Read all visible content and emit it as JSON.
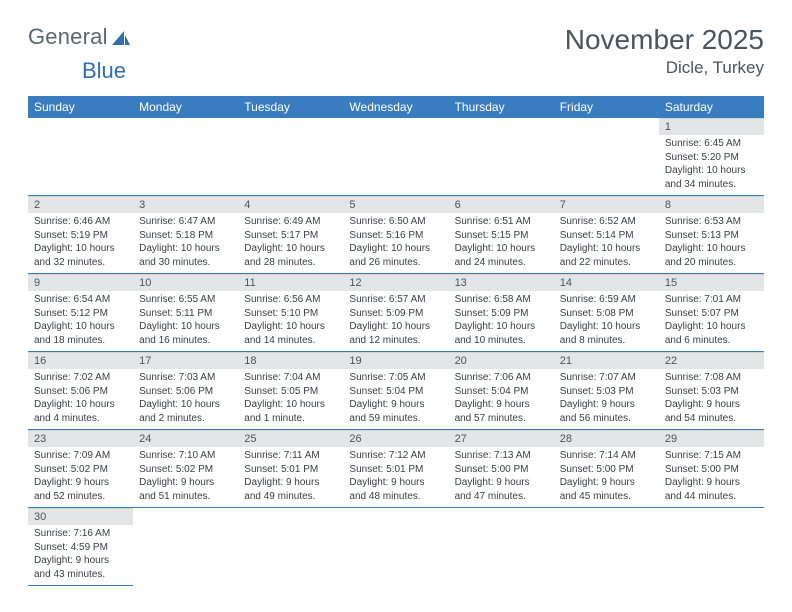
{
  "logo": {
    "text_a": "General",
    "text_b": "Blue"
  },
  "title": "November 2025",
  "location": "Dicle, Turkey",
  "colors": {
    "header_bg": "#3a7cc0",
    "header_fg": "#ffffff",
    "daynum_bg": "#e3e5e7",
    "border": "#3a7cc0",
    "text": "#4a5560"
  },
  "weekdays": [
    "Sunday",
    "Monday",
    "Tuesday",
    "Wednesday",
    "Thursday",
    "Friday",
    "Saturday"
  ],
  "grid": [
    [
      null,
      null,
      null,
      null,
      null,
      null,
      {
        "n": "1",
        "sr": "Sunrise: 6:45 AM",
        "ss": "Sunset: 5:20 PM",
        "dl1": "Daylight: 10 hours",
        "dl2": "and 34 minutes."
      }
    ],
    [
      {
        "n": "2",
        "sr": "Sunrise: 6:46 AM",
        "ss": "Sunset: 5:19 PM",
        "dl1": "Daylight: 10 hours",
        "dl2": "and 32 minutes."
      },
      {
        "n": "3",
        "sr": "Sunrise: 6:47 AM",
        "ss": "Sunset: 5:18 PM",
        "dl1": "Daylight: 10 hours",
        "dl2": "and 30 minutes."
      },
      {
        "n": "4",
        "sr": "Sunrise: 6:49 AM",
        "ss": "Sunset: 5:17 PM",
        "dl1": "Daylight: 10 hours",
        "dl2": "and 28 minutes."
      },
      {
        "n": "5",
        "sr": "Sunrise: 6:50 AM",
        "ss": "Sunset: 5:16 PM",
        "dl1": "Daylight: 10 hours",
        "dl2": "and 26 minutes."
      },
      {
        "n": "6",
        "sr": "Sunrise: 6:51 AM",
        "ss": "Sunset: 5:15 PM",
        "dl1": "Daylight: 10 hours",
        "dl2": "and 24 minutes."
      },
      {
        "n": "7",
        "sr": "Sunrise: 6:52 AM",
        "ss": "Sunset: 5:14 PM",
        "dl1": "Daylight: 10 hours",
        "dl2": "and 22 minutes."
      },
      {
        "n": "8",
        "sr": "Sunrise: 6:53 AM",
        "ss": "Sunset: 5:13 PM",
        "dl1": "Daylight: 10 hours",
        "dl2": "and 20 minutes."
      }
    ],
    [
      {
        "n": "9",
        "sr": "Sunrise: 6:54 AM",
        "ss": "Sunset: 5:12 PM",
        "dl1": "Daylight: 10 hours",
        "dl2": "and 18 minutes."
      },
      {
        "n": "10",
        "sr": "Sunrise: 6:55 AM",
        "ss": "Sunset: 5:11 PM",
        "dl1": "Daylight: 10 hours",
        "dl2": "and 16 minutes."
      },
      {
        "n": "11",
        "sr": "Sunrise: 6:56 AM",
        "ss": "Sunset: 5:10 PM",
        "dl1": "Daylight: 10 hours",
        "dl2": "and 14 minutes."
      },
      {
        "n": "12",
        "sr": "Sunrise: 6:57 AM",
        "ss": "Sunset: 5:09 PM",
        "dl1": "Daylight: 10 hours",
        "dl2": "and 12 minutes."
      },
      {
        "n": "13",
        "sr": "Sunrise: 6:58 AM",
        "ss": "Sunset: 5:09 PM",
        "dl1": "Daylight: 10 hours",
        "dl2": "and 10 minutes."
      },
      {
        "n": "14",
        "sr": "Sunrise: 6:59 AM",
        "ss": "Sunset: 5:08 PM",
        "dl1": "Daylight: 10 hours",
        "dl2": "and 8 minutes."
      },
      {
        "n": "15",
        "sr": "Sunrise: 7:01 AM",
        "ss": "Sunset: 5:07 PM",
        "dl1": "Daylight: 10 hours",
        "dl2": "and 6 minutes."
      }
    ],
    [
      {
        "n": "16",
        "sr": "Sunrise: 7:02 AM",
        "ss": "Sunset: 5:06 PM",
        "dl1": "Daylight: 10 hours",
        "dl2": "and 4 minutes."
      },
      {
        "n": "17",
        "sr": "Sunrise: 7:03 AM",
        "ss": "Sunset: 5:06 PM",
        "dl1": "Daylight: 10 hours",
        "dl2": "and 2 minutes."
      },
      {
        "n": "18",
        "sr": "Sunrise: 7:04 AM",
        "ss": "Sunset: 5:05 PM",
        "dl1": "Daylight: 10 hours",
        "dl2": "and 1 minute."
      },
      {
        "n": "19",
        "sr": "Sunrise: 7:05 AM",
        "ss": "Sunset: 5:04 PM",
        "dl1": "Daylight: 9 hours",
        "dl2": "and 59 minutes."
      },
      {
        "n": "20",
        "sr": "Sunrise: 7:06 AM",
        "ss": "Sunset: 5:04 PM",
        "dl1": "Daylight: 9 hours",
        "dl2": "and 57 minutes."
      },
      {
        "n": "21",
        "sr": "Sunrise: 7:07 AM",
        "ss": "Sunset: 5:03 PM",
        "dl1": "Daylight: 9 hours",
        "dl2": "and 56 minutes."
      },
      {
        "n": "22",
        "sr": "Sunrise: 7:08 AM",
        "ss": "Sunset: 5:03 PM",
        "dl1": "Daylight: 9 hours",
        "dl2": "and 54 minutes."
      }
    ],
    [
      {
        "n": "23",
        "sr": "Sunrise: 7:09 AM",
        "ss": "Sunset: 5:02 PM",
        "dl1": "Daylight: 9 hours",
        "dl2": "and 52 minutes."
      },
      {
        "n": "24",
        "sr": "Sunrise: 7:10 AM",
        "ss": "Sunset: 5:02 PM",
        "dl1": "Daylight: 9 hours",
        "dl2": "and 51 minutes."
      },
      {
        "n": "25",
        "sr": "Sunrise: 7:11 AM",
        "ss": "Sunset: 5:01 PM",
        "dl1": "Daylight: 9 hours",
        "dl2": "and 49 minutes."
      },
      {
        "n": "26",
        "sr": "Sunrise: 7:12 AM",
        "ss": "Sunset: 5:01 PM",
        "dl1": "Daylight: 9 hours",
        "dl2": "and 48 minutes."
      },
      {
        "n": "27",
        "sr": "Sunrise: 7:13 AM",
        "ss": "Sunset: 5:00 PM",
        "dl1": "Daylight: 9 hours",
        "dl2": "and 47 minutes."
      },
      {
        "n": "28",
        "sr": "Sunrise: 7:14 AM",
        "ss": "Sunset: 5:00 PM",
        "dl1": "Daylight: 9 hours",
        "dl2": "and 45 minutes."
      },
      {
        "n": "29",
        "sr": "Sunrise: 7:15 AM",
        "ss": "Sunset: 5:00 PM",
        "dl1": "Daylight: 9 hours",
        "dl2": "and 44 minutes."
      }
    ],
    [
      {
        "n": "30",
        "sr": "Sunrise: 7:16 AM",
        "ss": "Sunset: 4:59 PM",
        "dl1": "Daylight: 9 hours",
        "dl2": "and 43 minutes."
      },
      null,
      null,
      null,
      null,
      null,
      null
    ]
  ]
}
